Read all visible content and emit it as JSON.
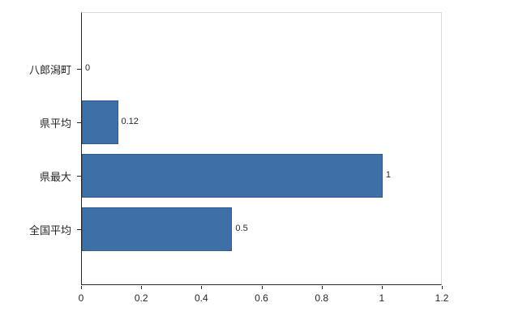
{
  "chart_data": {
    "type": "bar",
    "orientation": "horizontal",
    "categories": [
      "八郎潟町",
      "県平均",
      "県最大",
      "全国平均"
    ],
    "values": [
      0,
      0.12,
      1,
      0.5
    ],
    "value_labels": [
      "0",
      "0.12",
      "1",
      "0.5"
    ],
    "xlim": [
      0,
      1.2
    ],
    "x_ticks": [
      0,
      0.2,
      0.4,
      0.6,
      0.8,
      1,
      1.2
    ],
    "x_tick_labels": [
      "0",
      "0.2",
      "0.4",
      "0.6",
      "0.8",
      "1",
      "1.2"
    ],
    "bar_color": "#3e6fa6",
    "bar_border_color": "#2f5c91",
    "axis_color": "#262626",
    "plot_border_color": "#d9d9d9",
    "grid": false,
    "legend": false
  }
}
